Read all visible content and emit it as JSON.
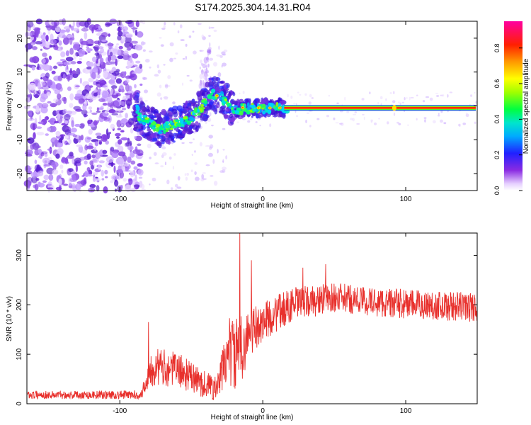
{
  "title": "S174.2025.304.14.31.R04",
  "chart_data": [
    {
      "type": "heatmap",
      "xlabel": "Height of straight line (km)",
      "ylabel": "Frequency (Hz)",
      "xlim": [
        -165,
        150
      ],
      "ylim": [
        -25,
        25
      ],
      "xticks": [
        -100,
        0,
        100
      ],
      "yticks": [
        -20,
        -10,
        0,
        10,
        20
      ],
      "colorbar": {
        "label": "Normalized spectral amplitude",
        "range": [
          0,
          0.95
        ],
        "ticks": [
          0.0,
          0.2,
          0.4,
          0.6,
          0.8
        ]
      },
      "ridge": {
        "points": [
          {
            "x": -87,
            "y": -3
          },
          {
            "x": -80,
            "y": -5
          },
          {
            "x": -72,
            "y": -7
          },
          {
            "x": -65,
            "y": -6
          },
          {
            "x": -58,
            "y": -5
          },
          {
            "x": -52,
            "y": -4
          },
          {
            "x": -46,
            "y": -2
          },
          {
            "x": -40,
            "y": 1
          },
          {
            "x": -36,
            "y": 3.5
          },
          {
            "x": -30,
            "y": 3
          },
          {
            "x": -25,
            "y": 1
          },
          {
            "x": -20,
            "y": -1
          },
          {
            "x": -10,
            "y": -0.8
          },
          {
            "x": 0,
            "y": -0.7
          },
          {
            "x": 20,
            "y": -0.6
          },
          {
            "x": 150,
            "y": -0.6
          }
        ],
        "steady_from": 15,
        "steady_frequency": -0.6
      }
    },
    {
      "type": "line",
      "xlabel": "Height of straight line (km)",
      "ylabel": "SNR (10 * v/v)",
      "xlim": [
        -165,
        150
      ],
      "ylim": [
        0,
        345
      ],
      "xticks": [
        -100,
        0,
        100
      ],
      "yticks": [
        0,
        100,
        200,
        300
      ],
      "color": "#e8302c",
      "envelope": [
        {
          "x": -165,
          "mean": 18,
          "spread": 8
        },
        {
          "x": -85,
          "mean": 18,
          "spread": 9
        },
        {
          "x": -78,
          "mean": 75,
          "spread": 40
        },
        {
          "x": -60,
          "mean": 70,
          "spread": 35
        },
        {
          "x": -45,
          "mean": 45,
          "spread": 30
        },
        {
          "x": -32,
          "mean": 30,
          "spread": 25
        },
        {
          "x": -24,
          "mean": 110,
          "spread": 70
        },
        {
          "x": -18,
          "mean": 95,
          "spread": 80
        },
        {
          "x": -10,
          "mean": 140,
          "spread": 50
        },
        {
          "x": 0,
          "mean": 165,
          "spread": 40
        },
        {
          "x": 20,
          "mean": 200,
          "spread": 35
        },
        {
          "x": 50,
          "mean": 215,
          "spread": 30
        },
        {
          "x": 80,
          "mean": 205,
          "spread": 30
        },
        {
          "x": 110,
          "mean": 200,
          "spread": 30
        },
        {
          "x": 150,
          "mean": 195,
          "spread": 30
        }
      ],
      "peaks": [
        {
          "x": -80,
          "y": 165
        },
        {
          "x": -16,
          "y": 345
        },
        {
          "x": -8,
          "y": 290
        },
        {
          "x": 28,
          "y": 275
        },
        {
          "x": 44,
          "y": 282
        }
      ]
    }
  ]
}
